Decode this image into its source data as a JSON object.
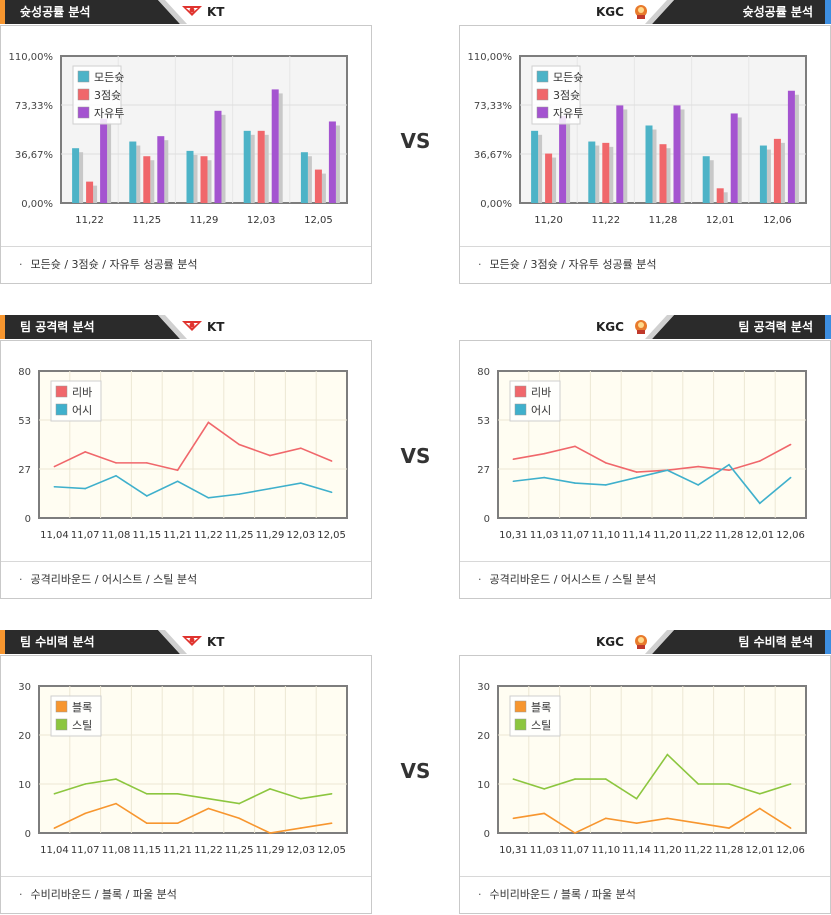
{
  "vs_label": "VS",
  "colors": {
    "allround": "#4db3c7",
    "three": "#f0676b",
    "free": "#a454d0",
    "reb": "#f0676b",
    "ast": "#3fb0cc",
    "blk": "#f7962f",
    "stl": "#8cc63f"
  },
  "sections": [
    {
      "left": {
        "title": "슛성공률 분석",
        "team": "KT",
        "caption": "모든슛 / 3점슛 / 자유투 성공률 분석",
        "chart_data": {
          "type": "bar",
          "ylim": [
            0,
            110
          ],
          "yticks": [
            "110,00%",
            "73,33%",
            "36,67%",
            "0,00%"
          ],
          "categories": [
            "11,22",
            "11,25",
            "11,29",
            "12,03",
            "12,05"
          ],
          "series": [
            {
              "name": "모든슛",
              "color": "#4db3c7",
              "values": [
                41,
                46,
                39,
                54,
                38
              ]
            },
            {
              "name": "3점슛",
              "color": "#f0676b",
              "values": [
                16,
                35,
                35,
                54,
                25
              ]
            },
            {
              "name": "자유투",
              "color": "#a454d0",
              "values": [
                63,
                50,
                69,
                85,
                61
              ]
            }
          ]
        }
      },
      "right": {
        "title": "슛성공률 분석",
        "team": "KGC",
        "caption": "모든슛 / 3점슛 / 자유투 성공률 분석",
        "chart_data": {
          "type": "bar",
          "ylim": [
            0,
            110
          ],
          "yticks": [
            "110,00%",
            "73,33%",
            "36,67%",
            "0,00%"
          ],
          "categories": [
            "11,20",
            "11,22",
            "11,28",
            "12,01",
            "12,06"
          ],
          "series": [
            {
              "name": "모든슛",
              "color": "#4db3c7",
              "values": [
                54,
                46,
                58,
                35,
                43
              ]
            },
            {
              "name": "3점슛",
              "color": "#f0676b",
              "values": [
                37,
                45,
                44,
                11,
                48
              ]
            },
            {
              "name": "자유투",
              "color": "#a454d0",
              "values": [
                65,
                73,
                73,
                67,
                84
              ]
            }
          ]
        }
      }
    },
    {
      "left": {
        "title": "팀 공격력 분석",
        "team": "KT",
        "caption": "공격리바운드 / 어시스트 / 스틸 분석",
        "chart_data": {
          "type": "line",
          "ylim": [
            0,
            80
          ],
          "yticks": [
            "80",
            "53",
            "27",
            "0"
          ],
          "categories": [
            "11,04",
            "11,07",
            "11,08",
            "11,15",
            "11,21",
            "11,22",
            "11,25",
            "11,29",
            "12,03",
            "12,05"
          ],
          "series": [
            {
              "name": "리바",
              "color": "#f0676b",
              "values": [
                28,
                36,
                30,
                30,
                26,
                52,
                40,
                34,
                38,
                31
              ]
            },
            {
              "name": "어시",
              "color": "#3fb0cc",
              "values": [
                17,
                16,
                23,
                12,
                20,
                11,
                13,
                16,
                19,
                14
              ]
            }
          ]
        }
      },
      "right": {
        "title": "팀 공격력 분석",
        "team": "KGC",
        "caption": "공격리바운드 / 어시스트 / 스틸 분석",
        "chart_data": {
          "type": "line",
          "ylim": [
            0,
            80
          ],
          "yticks": [
            "80",
            "53",
            "27",
            "0"
          ],
          "categories": [
            "10,31",
            "11,03",
            "11,07",
            "11,10",
            "11,14",
            "11,20",
            "11,22",
            "11,28",
            "12,01",
            "12,06"
          ],
          "series": [
            {
              "name": "리바",
              "color": "#f0676b",
              "values": [
                32,
                35,
                39,
                30,
                25,
                26,
                28,
                26,
                31,
                40
              ]
            },
            {
              "name": "어시",
              "color": "#3fb0cc",
              "values": [
                20,
                22,
                19,
                18,
                22,
                26,
                18,
                29,
                8,
                22
              ]
            }
          ]
        }
      }
    },
    {
      "left": {
        "title": "팀 수비력 분석",
        "team": "KT",
        "caption": "수비리바운드 / 블록 / 파울 분석",
        "chart_data": {
          "type": "line",
          "ylim": [
            0,
            30
          ],
          "yticks": [
            "30",
            "20",
            "10",
            "0"
          ],
          "categories": [
            "11,04",
            "11,07",
            "11,08",
            "11,15",
            "11,21",
            "11,22",
            "11,25",
            "11,29",
            "12,03",
            "12,05"
          ],
          "series": [
            {
              "name": "블록",
              "color": "#f7962f",
              "values": [
                1,
                4,
                6,
                2,
                2,
                5,
                3,
                0,
                1,
                2
              ]
            },
            {
              "name": "스틸",
              "color": "#8cc63f",
              "values": [
                8,
                10,
                11,
                8,
                8,
                7,
                6,
                9,
                7,
                8
              ]
            }
          ]
        }
      },
      "right": {
        "title": "팀 수비력 분석",
        "team": "KGC",
        "caption": "수비리바운드 / 블록 / 파울 분석",
        "chart_data": {
          "type": "line",
          "ylim": [
            0,
            30
          ],
          "yticks": [
            "30",
            "20",
            "10",
            "0"
          ],
          "categories": [
            "10,31",
            "11,03",
            "11,07",
            "11,10",
            "11,14",
            "11,20",
            "11,22",
            "11,28",
            "12,01",
            "12,06"
          ],
          "series": [
            {
              "name": "블록",
              "color": "#f7962f",
              "values": [
                3,
                4,
                0,
                3,
                2,
                3,
                2,
                1,
                5,
                1
              ]
            },
            {
              "name": "스틸",
              "color": "#8cc63f",
              "values": [
                11,
                9,
                11,
                11,
                7,
                16,
                10,
                10,
                8,
                10
              ]
            }
          ]
        }
      }
    }
  ]
}
